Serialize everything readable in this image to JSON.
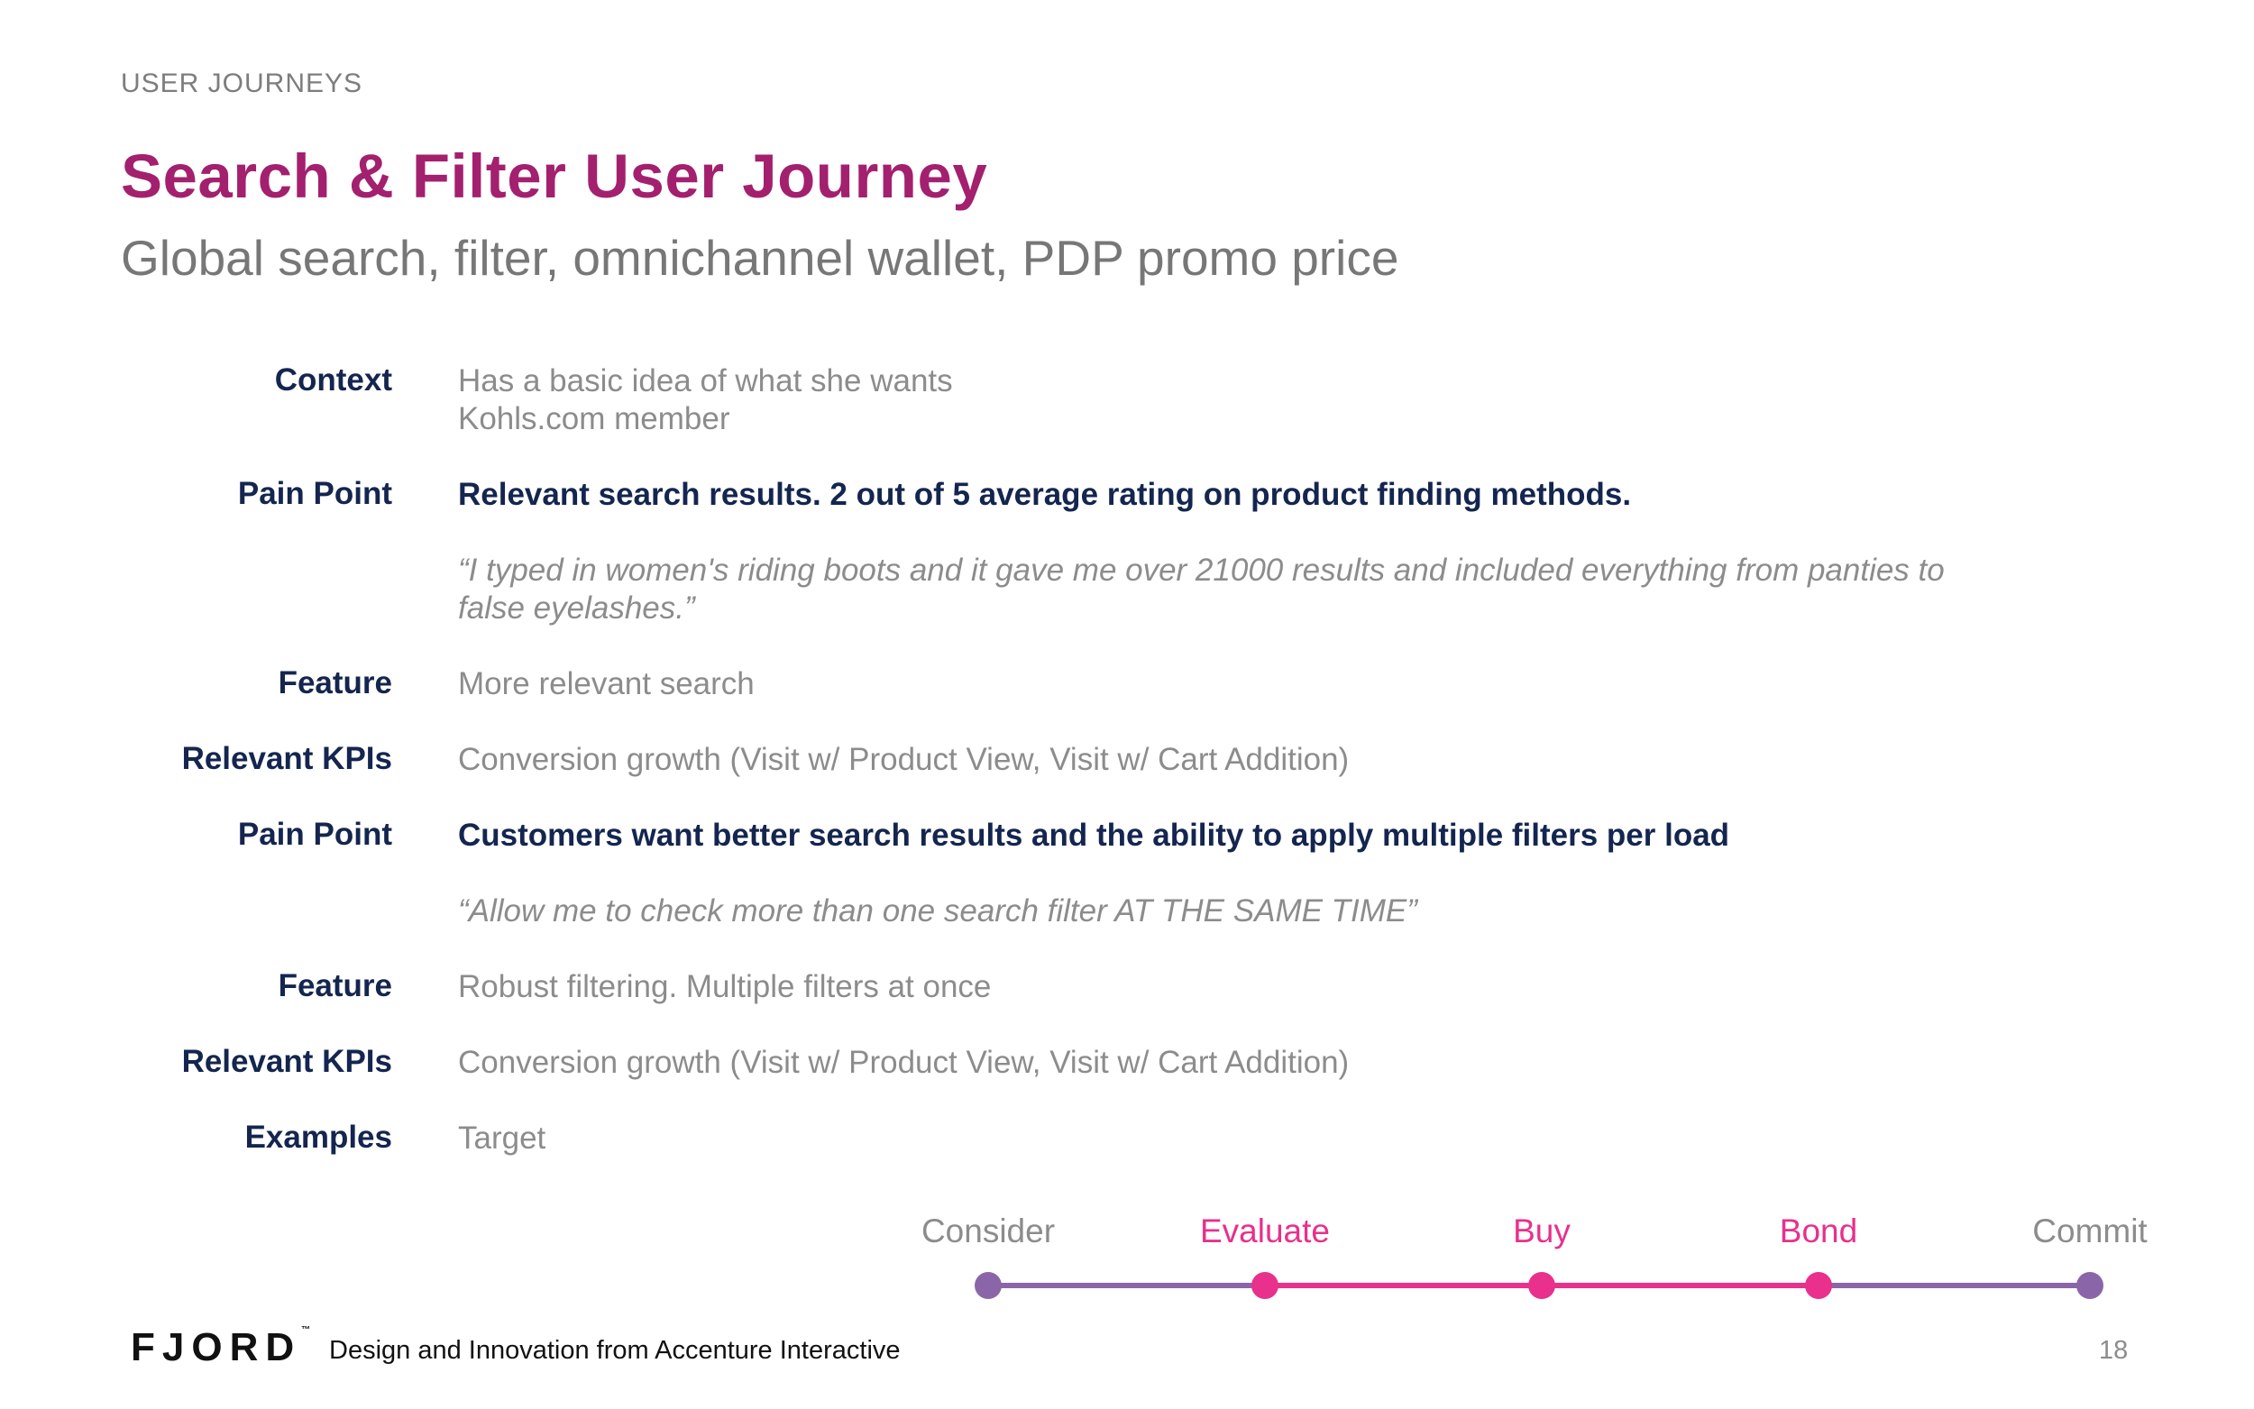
{
  "header": {
    "section": "USER JOURNEYS",
    "title": "Search & Filter User Journey",
    "subtitle": "Global search, filter, omnichannel wallet, PDP promo price"
  },
  "rows": {
    "context": {
      "label": "Context",
      "lines": [
        "Has a basic idea of what she wants",
        "Kohls.com member"
      ]
    },
    "pain1": {
      "label": "Pain Point",
      "text": "Relevant search results. 2 out of 5 average rating on product finding methods."
    },
    "quote1": {
      "lines": [
        "“I typed in women's riding boots and it gave me over 21000 results and included everything from panties to",
        "false eyelashes.”"
      ]
    },
    "feature1": {
      "label": "Feature",
      "text": "More relevant search"
    },
    "kpi1": {
      "label": "Relevant KPIs",
      "text": "Conversion growth (Visit w/ Product View, Visit w/ Cart Addition)"
    },
    "pain2": {
      "label": "Pain Point",
      "text": "Customers want better search results and the ability to apply multiple filters per load"
    },
    "quote2": {
      "text": "“Allow me to check more than one search filter AT THE SAME TIME”"
    },
    "feature2": {
      "label": "Feature",
      "text": "Robust filtering. Multiple filters at once"
    },
    "kpi2": {
      "label": "Relevant KPIs",
      "text": "Conversion growth (Visit w/ Product View, Visit w/ Cart Addition)"
    },
    "examples": {
      "label": "Examples",
      "text": "Target"
    }
  },
  "journey": {
    "stages": [
      {
        "label": "Consider",
        "active": false
      },
      {
        "label": "Evaluate",
        "active": true
      },
      {
        "label": "Buy",
        "active": true
      },
      {
        "label": "Bond",
        "active": true
      },
      {
        "label": "Commit",
        "active": false
      }
    ],
    "colors": {
      "active": "#e8308c",
      "inactive": "#8a66a8",
      "inactive_text": "#8c8c8c"
    }
  },
  "footer": {
    "logo": "FJORD",
    "trademark": "™",
    "tagline": "Design and Innovation from Accenture Interactive",
    "page_number": "18"
  }
}
